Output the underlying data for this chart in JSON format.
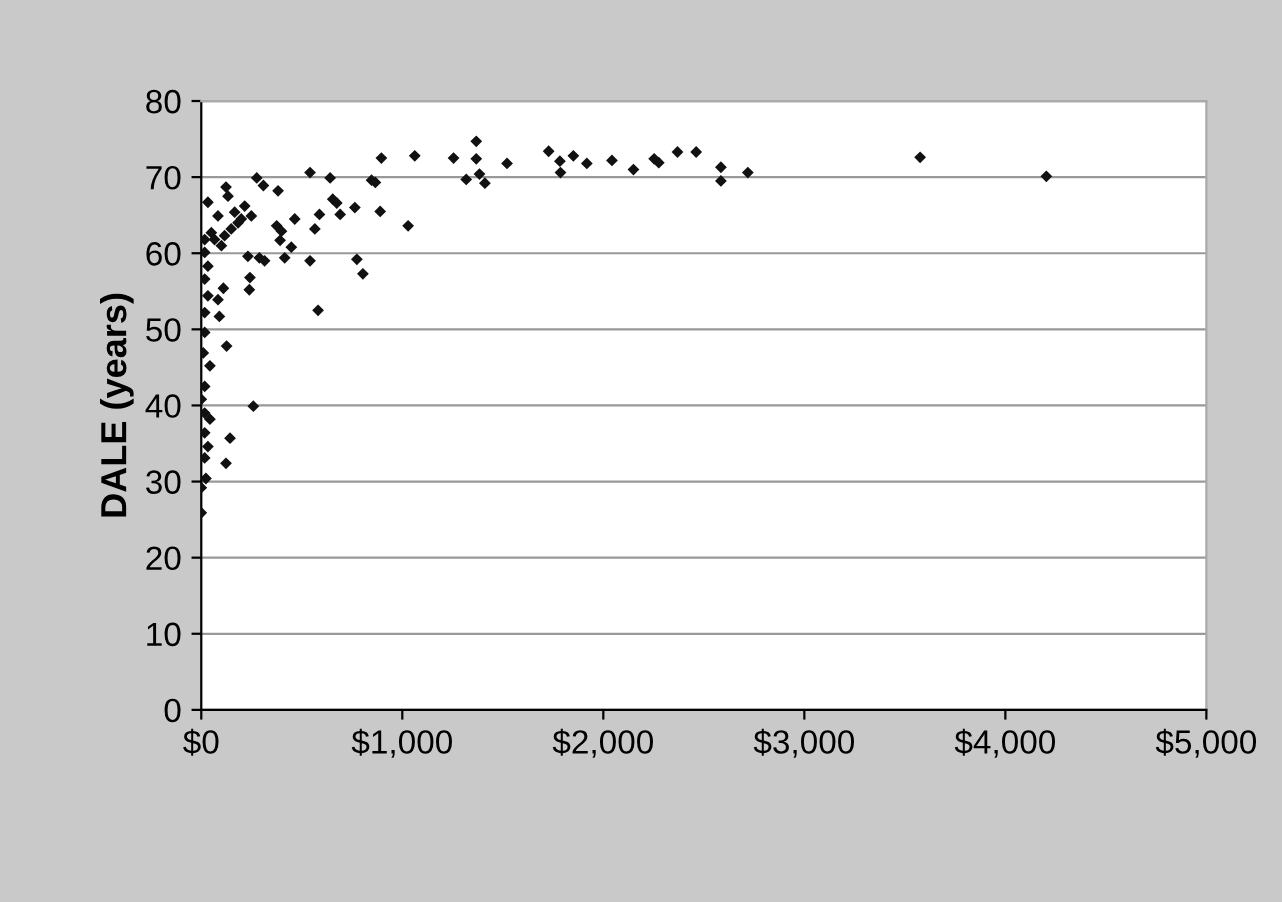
{
  "chart_data": {
    "type": "scatter",
    "ylabel": "DALE (years)",
    "marker": "diamond",
    "grid": "y",
    "xlim": [
      0,
      5000
    ],
    "ylim": [
      0,
      80
    ],
    "xticks": [
      {
        "value": 0,
        "label": "$0"
      },
      {
        "value": 1000,
        "label": "$1,000"
      },
      {
        "value": 2000,
        "label": "$2,000"
      },
      {
        "value": 3000,
        "label": "$3,000"
      },
      {
        "value": 4000,
        "label": "$4,000"
      },
      {
        "value": 5000,
        "label": "$5,000"
      }
    ],
    "yticks": [
      0,
      10,
      20,
      30,
      40,
      50,
      60,
      70,
      80
    ],
    "series": [
      {
        "color": "#111111",
        "x": [
          1062,
          896,
          1255,
          1368,
          1368,
          1521,
          1318,
          1384,
          1411,
          847,
          866,
          541,
          641,
          276,
          309,
          382,
          123,
          133,
          33,
          654,
          674,
          764,
          890,
          588,
          691,
          465,
          565,
          375,
          399,
          1029,
          216,
          249,
          199,
          166,
          83,
          50,
          17,
          116,
          392,
          448,
          232,
          289,
          315,
          415,
          541,
          774,
          804,
          242,
          239,
          110,
          83,
          581,
          17,
          33,
          17,
          33,
          17,
          90,
          126,
          17,
          10,
          43,
          17,
          0,
          17,
          259,
          43,
          17,
          143,
          33,
          17,
          123,
          23,
          0,
          0,
          66,
          100,
          149,
          183,
          1728,
          1784,
          1787,
          1851,
          1918,
          2043,
          2150,
          2253,
          2276,
          2369,
          2462,
          2585,
          2585,
          2719,
          3576,
          4204
        ],
        "values": [
          72.8,
          72.5,
          72.5,
          74.7,
          72.4,
          71.8,
          69.7,
          70.4,
          69.2,
          69.6,
          69.3,
          70.6,
          69.9,
          69.9,
          68.9,
          68.2,
          68.7,
          67.5,
          66.7,
          67.1,
          66.6,
          66.0,
          65.5,
          65.1,
          65.1,
          64.5,
          63.2,
          63.6,
          62.9,
          63.6,
          66.2,
          64.9,
          64.5,
          65.4,
          64.9,
          62.7,
          61.8,
          62.3,
          61.7,
          60.8,
          59.6,
          59.4,
          59.0,
          59.4,
          59.0,
          59.2,
          57.3,
          56.8,
          55.2,
          55.4,
          53.9,
          52.5,
          60.1,
          58.3,
          56.6,
          54.4,
          52.2,
          51.7,
          47.8,
          49.6,
          46.9,
          45.2,
          42.5,
          40.8,
          39.0,
          39.9,
          38.2,
          36.4,
          35.7,
          34.6,
          33.1,
          32.4,
          30.4,
          29.2,
          25.9,
          61.8,
          61.0,
          63.2,
          64.0,
          73.4,
          72.1,
          70.6,
          72.8,
          71.8,
          72.2,
          71.0,
          72.4,
          71.9,
          73.3,
          73.3,
          71.3,
          69.5,
          70.6,
          72.6,
          70.1
        ]
      }
    ]
  }
}
